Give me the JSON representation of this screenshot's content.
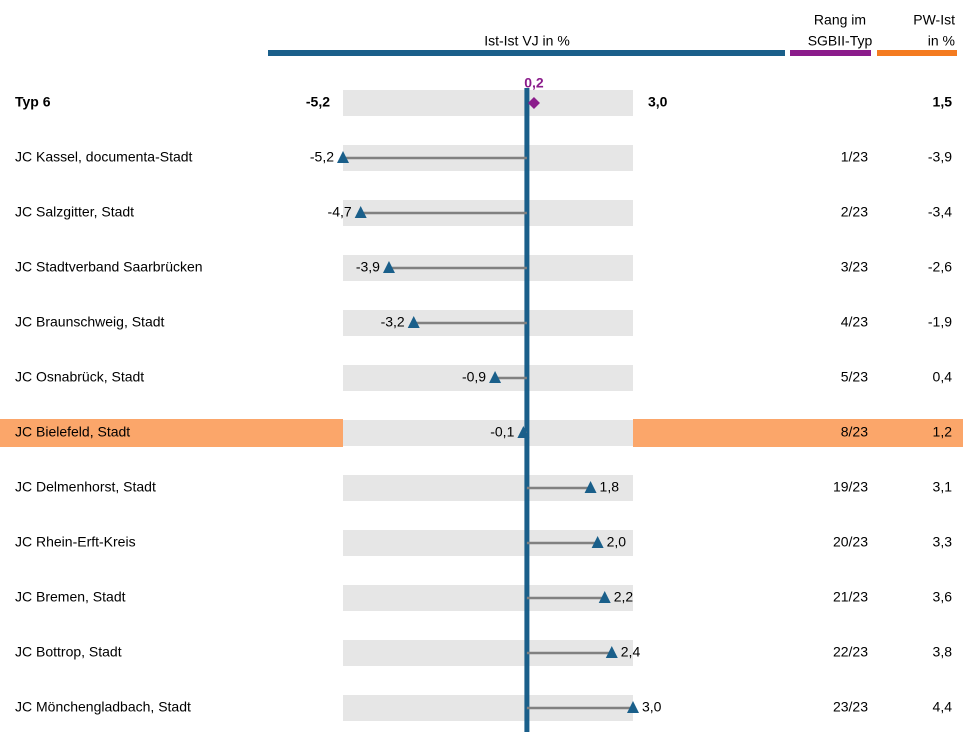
{
  "chart_data": {
    "type": "lollipop",
    "column_titles": {
      "value": [
        "Ist-Ist VJ in %"
      ],
      "rank": [
        "Rang im",
        "SGBII-Typ"
      ],
      "pw": [
        "PW-Ist",
        "in %"
      ]
    },
    "summary": {
      "label": "Typ 6",
      "min": -5.2,
      "min_label": "-5,2",
      "max": 3.0,
      "max_label": "3,0",
      "mean": 0.2,
      "mean_label": "0,2",
      "pw": 1.5,
      "pw_label": "1,5"
    },
    "categories": [
      "JC Kassel, documenta-Stadt",
      "JC Salzgitter, Stadt",
      "JC Stadtverband Saarbrücken",
      "JC Braunschweig, Stadt",
      "JC Osnabrück, Stadt",
      "JC Bielefeld, Stadt",
      "JC Delmenhorst, Stadt",
      "JC Rhein-Erft-Kreis",
      "JC Bremen, Stadt",
      "JC Bottrop, Stadt",
      "JC Mönchengladbach, Stadt"
    ],
    "values": [
      -5.2,
      -4.7,
      -3.9,
      -3.2,
      -0.9,
      -0.1,
      1.8,
      2.0,
      2.2,
      2.4,
      3.0
    ],
    "value_labels": [
      "-5,2",
      "-4,7",
      "-3,9",
      "-3,2",
      "-0,9",
      "-0,1",
      "1,8",
      "2,0",
      "2,2",
      "2,4",
      "3,0"
    ],
    "ranks": [
      "1/23",
      "2/23",
      "3/23",
      "4/23",
      "5/23",
      "8/23",
      "19/23",
      "20/23",
      "21/23",
      "22/23",
      "23/23"
    ],
    "pw_values": [
      -3.9,
      -3.4,
      -2.6,
      -1.9,
      0.4,
      1.2,
      3.1,
      3.3,
      3.6,
      3.8,
      4.4
    ],
    "pw_labels": [
      "-3,9",
      "-3,4",
      "-2,6",
      "-1,9",
      "0,4",
      "1,2",
      "3,1",
      "3,3",
      "3,6",
      "3,8",
      "4,4"
    ],
    "highlight": [
      false,
      false,
      false,
      false,
      false,
      true,
      false,
      false,
      false,
      false,
      false
    ],
    "xlim": [
      -5.2,
      3.0
    ],
    "color": "#1a5f8a",
    "stem_color": "#808080",
    "mean_color": "#8b1c8b",
    "highlight_color": "#fba66a",
    "band_color": "#e6e6e6",
    "header_colors": {
      "value": "#1a5f8a",
      "rank": "#8b1c8b",
      "pw": "#f47b20"
    }
  }
}
